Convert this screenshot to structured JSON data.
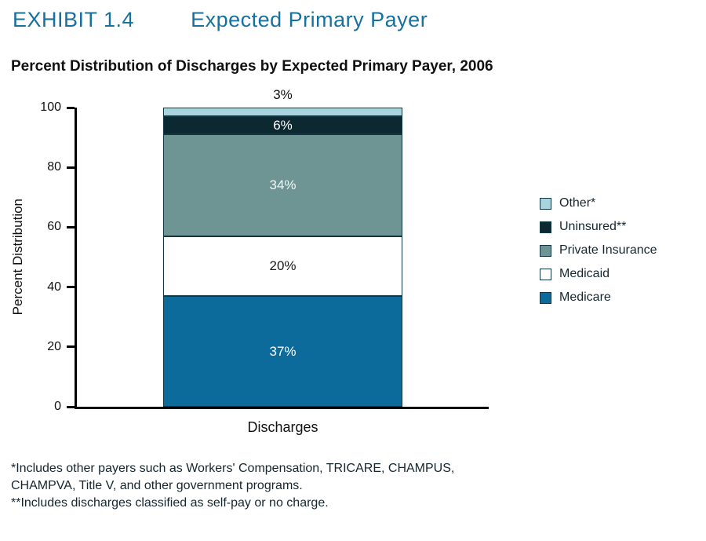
{
  "page": {
    "exhibit_label": "EXHIBIT 1.4",
    "exhibit_title": "Expected Primary Payer",
    "chart_title": "Percent Distribution of Discharges by Expected Primary Payer, 2006",
    "footnotes": [
      "*Includes other payers such as Workers' Compensation, TRICARE, CHAMPUS,",
      "CHAMPVA, Title V, and other government programs.",
      "**Includes discharges classified as self-pay or no charge."
    ]
  },
  "chart_data": {
    "type": "bar",
    "stacked": true,
    "title": "Percent Distribution of Discharges by Expected Primary Payer, 2006",
    "categories": [
      "Discharges"
    ],
    "series": [
      {
        "name": "Medicare",
        "values": [
          37
        ],
        "color": "#0d6b9b",
        "label_color": "#ffffff"
      },
      {
        "name": "Medicaid",
        "values": [
          20
        ],
        "color": "#ffffff",
        "label_color": "#1a1a1a"
      },
      {
        "name": "Private Insurance",
        "values": [
          34
        ],
        "color": "#6e9594",
        "label_color": "#f2f7f7"
      },
      {
        "name": "Uninsured**",
        "values": [
          6
        ],
        "color": "#0c2830",
        "label_color": "#ffffff"
      },
      {
        "name": "Other*",
        "values": [
          3
        ],
        "color": "#a8d4de",
        "label_color": "#1a1a1a",
        "label_outside": true
      }
    ],
    "xlabel": "Discharges",
    "ylabel": "Percent Distribution",
    "ylim": [
      0,
      100
    ],
    "yticks": [
      0,
      20,
      40,
      60,
      80,
      100
    ],
    "grid": false,
    "legend_position": "right",
    "legend_order": [
      "Other*",
      "Uninsured**",
      "Private Insurance",
      "Medicaid",
      "Medicare"
    ]
  },
  "colors": {
    "accent": "#17719f",
    "axis": "#000000",
    "text_dark": "#16262e"
  }
}
